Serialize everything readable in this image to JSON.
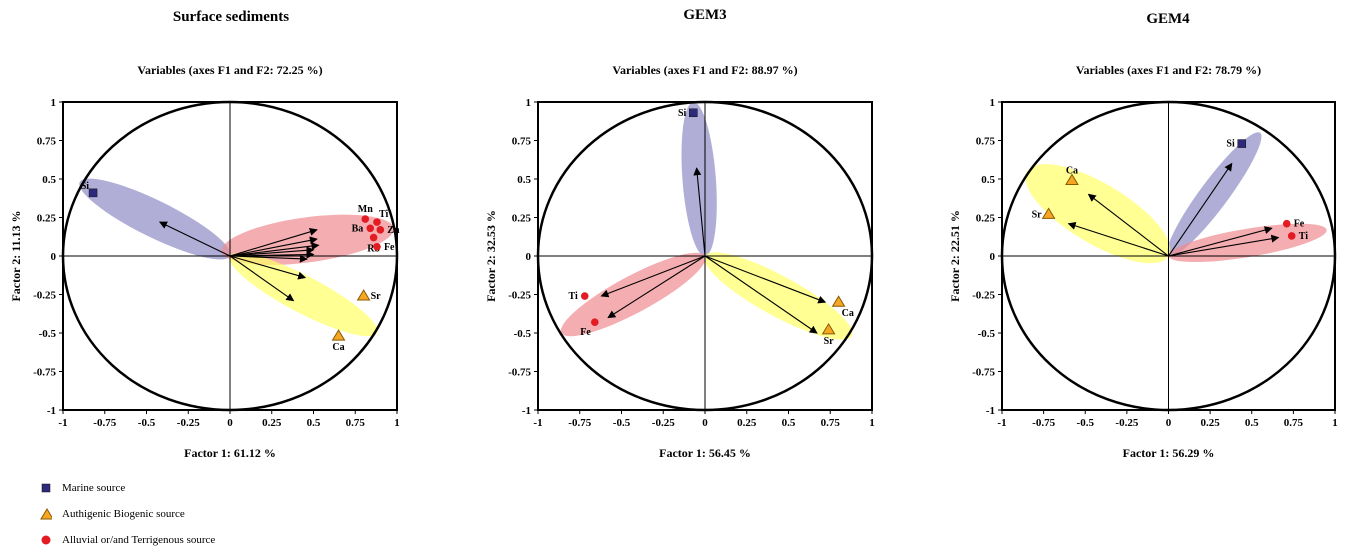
{
  "colors": {
    "marine": "#2e2a7a",
    "biogenic_fill": "#f5a623",
    "biogenic_stroke": "#8a5a00",
    "terrigenous": "#e31b23",
    "ellipse_blue": "#8e8cc4",
    "ellipse_yellow": "#ffff66",
    "ellipse_red": "#f08a8e"
  },
  "legend": {
    "marine": "Marine source",
    "biogenic": "Authigenic Biogenic source",
    "terrigenous": "Alluvial or/and Terrigenous source"
  },
  "chart_data": [
    {
      "type": "scatter",
      "title": "Surface sediments",
      "subtitle": "Variables (axes F1 and F2: 72.25 %)",
      "xlabel": "Factor 1: 61.12 %",
      "ylabel": "Factor 2: 11.13 %",
      "xlim": [
        -1,
        1
      ],
      "ylim": [
        -1,
        1
      ],
      "xticks": [
        "-1",
        "-0.75",
        "-0.5",
        "-0.25",
        "0",
        "0.25",
        "0.5",
        "0.75",
        "1"
      ],
      "yticks": [
        "1",
        "0.75",
        "0.5",
        "0.25",
        "0",
        "-0.25",
        "-0.5",
        "-0.75",
        "-1"
      ],
      "points": [
        {
          "label": "Si",
          "x": -0.82,
          "y": 0.41,
          "source": "marine",
          "arrow": [
            -0.42,
            0.22
          ],
          "label_pos": "left-up"
        },
        {
          "label": "Mn",
          "x": 0.81,
          "y": 0.24,
          "source": "terrigenous",
          "arrow": [
            0.52,
            0.17
          ],
          "label_pos": "up"
        },
        {
          "label": "Ti",
          "x": 0.88,
          "y": 0.22,
          "source": "terrigenous",
          "arrow": [
            0.52,
            0.11
          ],
          "label_pos": "right-up"
        },
        {
          "label": "Zn",
          "x": 0.9,
          "y": 0.17,
          "source": "terrigenous",
          "arrow": [
            0.53,
            0.07
          ],
          "label_pos": "right"
        },
        {
          "label": "Ba",
          "x": 0.84,
          "y": 0.18,
          "source": "terrigenous",
          "arrow": [
            0.5,
            0.04
          ],
          "label_pos": "left"
        },
        {
          "label": "Rb",
          "x": 0.86,
          "y": 0.12,
          "source": "terrigenous",
          "arrow": [
            0.5,
            0.01
          ],
          "label_pos": "down"
        },
        {
          "label": "Fe",
          "x": 0.88,
          "y": 0.06,
          "source": "terrigenous",
          "arrow": [
            0.46,
            -0.02
          ],
          "label_pos": "right"
        },
        {
          "label": "Sr",
          "x": 0.8,
          "y": -0.26,
          "source": "biogenic",
          "arrow": [
            0.45,
            -0.14
          ],
          "label_pos": "right"
        },
        {
          "label": "Ca",
          "x": 0.65,
          "y": -0.52,
          "source": "biogenic",
          "arrow": [
            0.38,
            -0.29
          ],
          "label_pos": "down"
        }
      ],
      "ellipses": [
        {
          "color": "blue",
          "from": [
            -0.9,
            0.48
          ],
          "to": [
            0.0,
            0.0
          ],
          "width": 0.22
        },
        {
          "color": "red",
          "from": [
            -0.05,
            0.03
          ],
          "to": [
            0.98,
            0.18
          ],
          "width": 0.27
        },
        {
          "color": "yellow",
          "from": [
            0.0,
            0.0
          ],
          "to": [
            0.88,
            -0.5
          ],
          "width": 0.22
        }
      ]
    },
    {
      "type": "scatter",
      "title": "GEM3",
      "subtitle": "Variables (axes F1 and F2: 88.97 %)",
      "xlabel": "Factor 1: 56.45 %",
      "ylabel": "Factor 2: 32.53 %",
      "xlim": [
        -1,
        1
      ],
      "ylim": [
        -1,
        1
      ],
      "xticks": [
        "-1",
        "-0.75",
        "-0.5",
        "-0.25",
        "0",
        "0.25",
        "0.5",
        "0.75",
        "1"
      ],
      "yticks": [
        "1",
        "0.75",
        "0.5",
        "0.25",
        "0",
        "-0.25",
        "-0.5",
        "-0.75",
        "-1"
      ],
      "points": [
        {
          "label": "Si",
          "x": -0.07,
          "y": 0.93,
          "source": "marine",
          "arrow": [
            -0.05,
            0.57
          ],
          "label_pos": "left"
        },
        {
          "label": "Ti",
          "x": -0.72,
          "y": -0.26,
          "source": "terrigenous",
          "arrow": [
            -0.62,
            -0.26
          ],
          "label_pos": "left"
        },
        {
          "label": "Fe",
          "x": -0.66,
          "y": -0.43,
          "source": "terrigenous",
          "arrow": [
            -0.58,
            -0.4
          ],
          "label_pos": "down-left"
        },
        {
          "label": "Ca",
          "x": 0.8,
          "y": -0.3,
          "source": "biogenic",
          "arrow": [
            0.72,
            -0.3
          ],
          "label_pos": "down-right"
        },
        {
          "label": "Sr",
          "x": 0.74,
          "y": -0.48,
          "source": "biogenic",
          "arrow": [
            0.67,
            -0.5
          ],
          "label_pos": "down"
        }
      ],
      "ellipses": [
        {
          "color": "blue",
          "from": [
            -0.07,
            1.0
          ],
          "to": [
            0.0,
            0.0
          ],
          "width": 0.2
        },
        {
          "color": "red",
          "from": [
            0.0,
            0.0
          ],
          "to": [
            -0.86,
            -0.5
          ],
          "width": 0.22
        },
        {
          "color": "yellow",
          "from": [
            0.0,
            0.0
          ],
          "to": [
            0.88,
            -0.52
          ],
          "width": 0.24
        }
      ]
    },
    {
      "type": "scatter",
      "title": "GEM4",
      "subtitle": "Variables (axes F1 and F2: 78.79 %)",
      "xlabel": "Factor 1: 56.29 %",
      "ylabel": "Factor 2: 22.51 %",
      "xlim": [
        -1,
        1
      ],
      "ylim": [
        -1,
        1
      ],
      "xticks": [
        "-1",
        "-0.75",
        "-0.5",
        "-0.25",
        "0",
        "0.25",
        "0.5",
        "0.75",
        "1"
      ],
      "yticks": [
        "1",
        "0.75",
        "0.5",
        "0.25",
        "0",
        "-0.25",
        "-0.5",
        "-0.75",
        "-1"
      ],
      "points": [
        {
          "label": "Si",
          "x": 0.44,
          "y": 0.73,
          "source": "marine",
          "arrow": [
            0.38,
            0.6
          ],
          "label_pos": "left"
        },
        {
          "label": "Ca",
          "x": -0.58,
          "y": 0.49,
          "source": "biogenic",
          "arrow": [
            -0.48,
            0.4
          ],
          "label_pos": "up"
        },
        {
          "label": "Sr",
          "x": -0.72,
          "y": 0.27,
          "source": "biogenic",
          "arrow": [
            -0.6,
            0.21
          ],
          "label_pos": "left"
        },
        {
          "label": "Fe",
          "x": 0.71,
          "y": 0.21,
          "source": "terrigenous",
          "arrow": [
            0.62,
            0.18
          ],
          "label_pos": "right"
        },
        {
          "label": "Ti",
          "x": 0.74,
          "y": 0.13,
          "source": "terrigenous",
          "arrow": [
            0.66,
            0.12
          ],
          "label_pos": "right"
        }
      ],
      "ellipses": [
        {
          "color": "blue",
          "from": [
            0.0,
            0.0
          ],
          "to": [
            0.55,
            0.8
          ],
          "width": 0.17
        },
        {
          "color": "red",
          "from": [
            0.0,
            0.0
          ],
          "to": [
            0.95,
            0.17
          ],
          "width": 0.17
        },
        {
          "color": "yellow",
          "from": [
            -0.85,
            0.55
          ],
          "to": [
            0.0,
            0.0
          ],
          "width": 0.36
        }
      ]
    }
  ]
}
